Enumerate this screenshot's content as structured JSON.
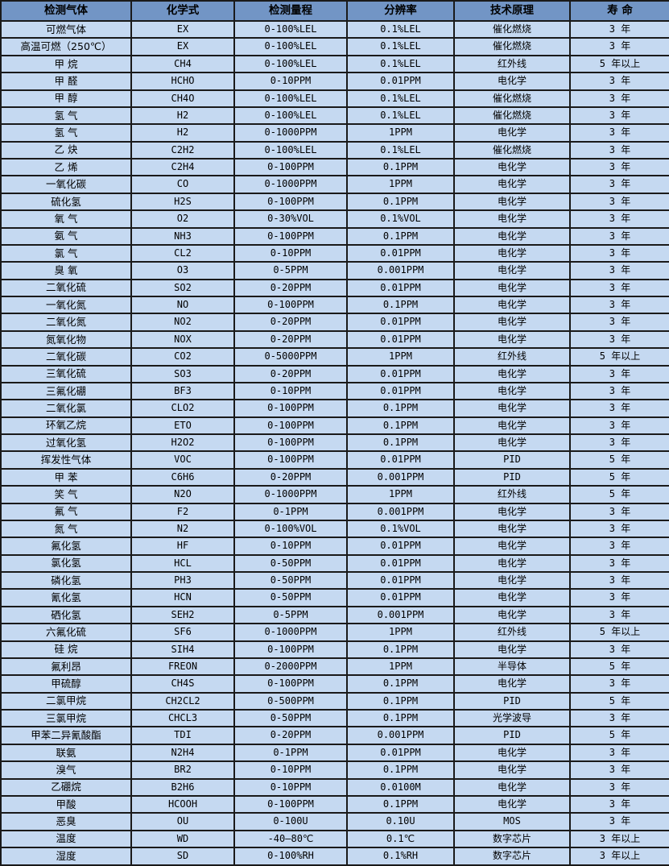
{
  "colors": {
    "header_bg": "#7295C5",
    "row_bg": "#C5D9F1",
    "border": "#1A1A1A"
  },
  "table": {
    "columns": [
      "检测气体",
      "化学式",
      "检测量程",
      "分辨率",
      "技术原理",
      "寿 命"
    ],
    "rows": [
      [
        "可燃气体",
        "EX",
        "0-100%LEL",
        "0.1%LEL",
        "催化燃烧",
        "3 年"
      ],
      [
        "高温可燃（250℃）",
        "EX",
        "0-100%LEL",
        "0.1%LEL",
        "催化燃烧",
        "3 年"
      ],
      [
        "甲 烷",
        "CH4",
        "0-100%LEL",
        "0.1%LEL",
        "红外线",
        "5 年以上"
      ],
      [
        "甲 醛",
        "HCHO",
        "0-10PPM",
        "0.01PPM",
        "电化学",
        "3 年"
      ],
      [
        "甲 醇",
        "CH4O",
        "0-100%LEL",
        "0.1%LEL",
        "催化燃烧",
        "3 年"
      ],
      [
        "氢 气",
        "H2",
        "0-100%LEL",
        "0.1%LEL",
        "催化燃烧",
        "3 年"
      ],
      [
        "氢 气",
        "H2",
        "0-1000PPM",
        "1PPM",
        "电化学",
        "3 年"
      ],
      [
        "乙 炔",
        "C2H2",
        "0-100%LEL",
        "0.1%LEL",
        "催化燃烧",
        "3 年"
      ],
      [
        "乙 烯",
        "C2H4",
        "0-100PPM",
        "0.1PPM",
        "电化学",
        "3 年"
      ],
      [
        "一氧化碳",
        "CO",
        "0-1000PPM",
        "1PPM",
        "电化学",
        "3 年"
      ],
      [
        "硫化氢",
        "H2S",
        "0-100PPM",
        "0.1PPM",
        "电化学",
        "3 年"
      ],
      [
        "氧 气",
        "O2",
        "0-30%VOL",
        "0.1%VOL",
        "电化学",
        "3 年"
      ],
      [
        "氨 气",
        "NH3",
        "0-100PPM",
        "0.1PPM",
        "电化学",
        "3 年"
      ],
      [
        "氯 气",
        "CL2",
        "0-10PPM",
        "0.01PPM",
        "电化学",
        "3 年"
      ],
      [
        "臭 氧",
        "O3",
        "0-5PPM",
        "0.001PPM",
        "电化学",
        "3 年"
      ],
      [
        "二氧化硫",
        "SO2",
        "0-20PPM",
        "0.01PPM",
        "电化学",
        "3 年"
      ],
      [
        "一氧化氮",
        "NO",
        "0-100PPM",
        "0.1PPM",
        "电化学",
        "3 年"
      ],
      [
        "二氧化氮",
        "NO2",
        "0-20PPM",
        "0.01PPM",
        "电化学",
        "3 年"
      ],
      [
        "氮氧化物",
        "NOX",
        "0-20PPM",
        "0.01PPM",
        "电化学",
        "3 年"
      ],
      [
        "二氧化碳",
        "CO2",
        "0-5000PPM",
        "1PPM",
        "红外线",
        "5 年以上"
      ],
      [
        "三氧化硫",
        "SO3",
        "0-20PPM",
        "0.01PPM",
        "电化学",
        "3 年"
      ],
      [
        "三氟化硼",
        "BF3",
        "0-10PPM",
        "0.01PPM",
        "电化学",
        "3 年"
      ],
      [
        "二氧化氯",
        "CLO2",
        "0-100PPM",
        "0.1PPM",
        "电化学",
        "3 年"
      ],
      [
        "环氧乙烷",
        "ETO",
        "0-100PPM",
        "0.1PPM",
        "电化学",
        "3 年"
      ],
      [
        "过氧化氢",
        "H2O2",
        "0-100PPM",
        "0.1PPM",
        "电化学",
        "3 年"
      ],
      [
        "挥发性气体",
        "VOC",
        "0-100PPM",
        "0.01PPM",
        "PID",
        "5 年"
      ],
      [
        "甲 苯",
        "C6H6",
        "0-20PPM",
        "0.001PPM",
        "PID",
        "5 年"
      ],
      [
        "笑 气",
        "N2O",
        "0-1000PPM",
        "1PPM",
        "红外线",
        "5 年"
      ],
      [
        "氟 气",
        "F2",
        "0-1PPM",
        "0.001PPM",
        "电化学",
        "3 年"
      ],
      [
        "氮 气",
        "N2",
        "0-100%VOL",
        "0.1%VOL",
        "电化学",
        "3 年"
      ],
      [
        "氟化氢",
        "HF",
        "0-10PPM",
        "0.01PPM",
        "电化学",
        "3 年"
      ],
      [
        "氯化氢",
        "HCL",
        "0-50PPM",
        "0.01PPM",
        "电化学",
        "3 年"
      ],
      [
        "磷化氢",
        "PH3",
        "0-50PPM",
        "0.01PPM",
        "电化学",
        "3 年"
      ],
      [
        "氰化氢",
        "HCN",
        "0-50PPM",
        "0.01PPM",
        "电化学",
        "3 年"
      ],
      [
        "硒化氢",
        "SEH2",
        "0-5PPM",
        "0.001PPM",
        "电化学",
        "3 年"
      ],
      [
        "六氟化硫",
        "SF6",
        "0-1000PPM",
        "1PPM",
        "红外线",
        "5 年以上"
      ],
      [
        "硅 烷",
        "SIH4",
        "0-100PPM",
        "0.1PPM",
        "电化学",
        "3 年"
      ],
      [
        "氟利昂",
        "FREON",
        "0-2000PPM",
        "1PPM",
        "半导体",
        "5 年"
      ],
      [
        "甲硫醇",
        "CH4S",
        "0-100PPM",
        "0.1PPM",
        "电化学",
        "3 年"
      ],
      [
        "二氯甲烷",
        "CH2CL2",
        "0-500PPM",
        "0.1PPM",
        "PID",
        "5 年"
      ],
      [
        "三氯甲烷",
        "CHCL3",
        "0-50PPM",
        "0.1PPM",
        "光学波导",
        "3 年"
      ],
      [
        "甲苯二异氰酸酯",
        "TDI",
        "0-20PPM",
        "0.001PPM",
        "PID",
        "5 年"
      ],
      [
        "联氨",
        "N2H4",
        "0-1PPM",
        "0.01PPM",
        "电化学",
        "3 年"
      ],
      [
        "溴气",
        "BR2",
        "0-10PPM",
        "0.1PPM",
        "电化学",
        "3 年"
      ],
      [
        "乙硼烷",
        "B2H6",
        "0-10PPM",
        "0.0100M",
        "电化学",
        "3 年"
      ],
      [
        "甲酸",
        "HCOOH",
        "0-100PPM",
        "0.1PPM",
        "电化学",
        "3 年"
      ],
      [
        "恶臭",
        "OU",
        "0-100U",
        "0.10U",
        "MOS",
        "3 年"
      ],
      [
        "温度",
        "WD",
        "-40—80℃",
        "0.1℃",
        "数字芯片",
        "3 年以上"
      ],
      [
        "湿度",
        "SD",
        "0-100%RH",
        "0.1%RH",
        "数字芯片",
        "3 年以上"
      ]
    ]
  }
}
